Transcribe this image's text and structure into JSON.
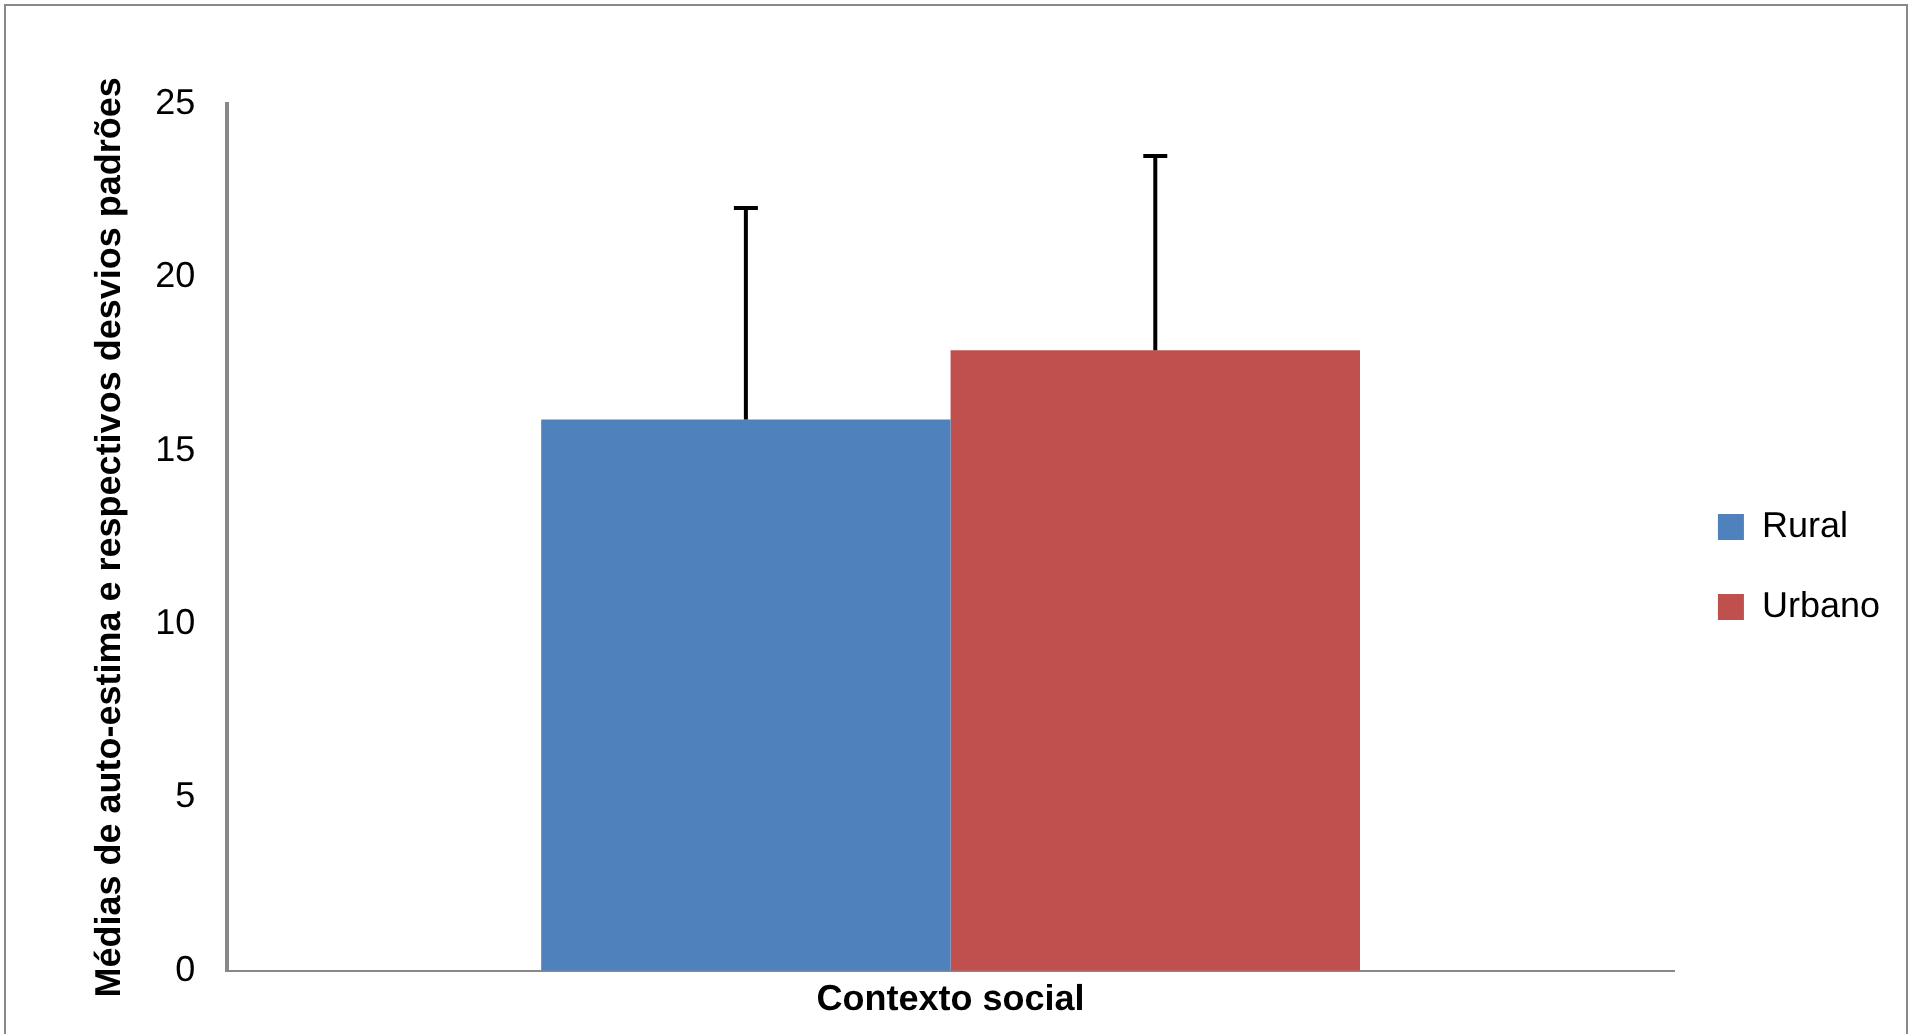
{
  "chart_data": {
    "type": "bar",
    "ylabel": "Médias de auto-estima e respectivos desvios padrões",
    "categories": [
      "Contexto social"
    ],
    "series": [
      {
        "name": "Rural",
        "color": "#4f81bd",
        "values": [
          15.9
        ],
        "errors": [
          [
            15.9,
            22.0
          ]
        ]
      },
      {
        "name": "Urbano",
        "color": "#c0504d",
        "values": [
          17.9
        ],
        "errors": [
          [
            17.9,
            23.5
          ]
        ]
      }
    ],
    "ylim": [
      0,
      25
    ],
    "yticks": [
      0,
      5,
      10,
      15,
      20,
      25
    ],
    "grid": false,
    "legend": "right"
  }
}
